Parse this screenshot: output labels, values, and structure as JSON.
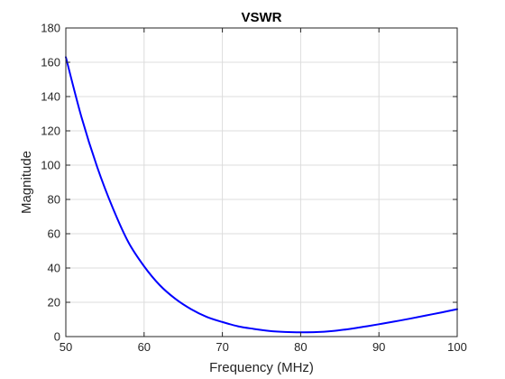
{
  "chart_data": {
    "type": "line",
    "title": "VSWR",
    "xlabel": "Frequency (MHz)",
    "ylabel": "Magnitude",
    "xlim": [
      50,
      100
    ],
    "ylim": [
      0,
      180
    ],
    "xticks": [
      50,
      60,
      70,
      80,
      90,
      100
    ],
    "yticks": [
      0,
      20,
      40,
      60,
      80,
      100,
      120,
      140,
      160,
      180
    ],
    "grid": true,
    "colors": {
      "line": "#0000ff",
      "grid": "#dcdcdc",
      "axes": "#262626",
      "background": "#ffffff"
    },
    "series": [
      {
        "x": [
          50,
          52,
          54,
          56,
          58,
          60,
          62,
          64,
          66,
          68,
          70,
          72,
          74,
          76,
          78,
          80,
          82,
          84,
          86,
          88,
          90,
          92,
          94,
          96,
          98,
          100
        ],
        "y": [
          163,
          128,
          99,
          75,
          55,
          41,
          30,
          22,
          16,
          11.5,
          8.5,
          6,
          4.5,
          3.3,
          2.7,
          2.5,
          2.6,
          3.2,
          4.3,
          5.7,
          7.2,
          8.8,
          10.5,
          12.3,
          14.1,
          16
        ]
      }
    ]
  }
}
